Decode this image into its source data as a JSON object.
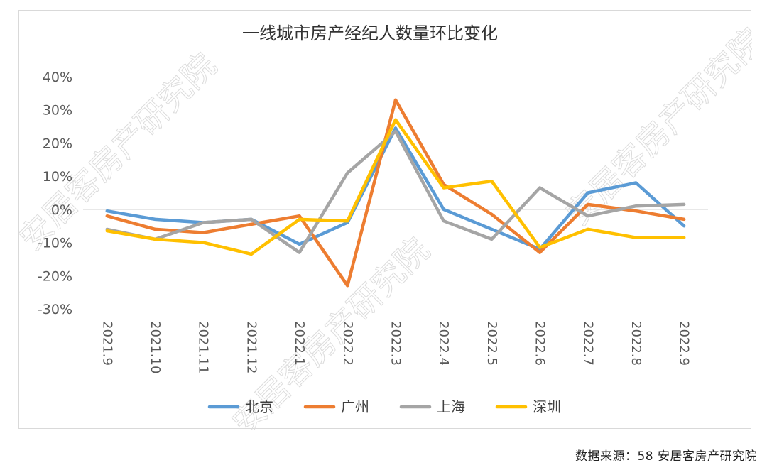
{
  "source_note": "数据来源：58 安居客房产研究院",
  "watermark": "安居客房产研究院",
  "chart_data": {
    "type": "line",
    "title": "一线城市房产经纪人数量环比变化",
    "xlabel": "",
    "ylabel": "",
    "categories": [
      "2021.9",
      "2021.10",
      "2021.11",
      "2021.12",
      "2022.1",
      "2022.2",
      "2022.3",
      "2022.4",
      "2022.5",
      "2022.6",
      "2022.7",
      "2022.8",
      "2022.9"
    ],
    "ylim": [
      -30,
      40
    ],
    "yticks": [
      40,
      30,
      20,
      10,
      0,
      -10,
      -20,
      -30
    ],
    "ytick_labels": [
      "40%",
      "30%",
      "20%",
      "10%",
      "0%",
      "-10%",
      "-20%",
      "-30%"
    ],
    "grid": false,
    "zero_line": true,
    "legend": "bottom",
    "series": [
      {
        "name": "北京",
        "color": "#5b9bd5",
        "values": [
          -0.5,
          -3,
          -4,
          -3,
          -10.5,
          -4,
          24.5,
          0,
          -6,
          -12,
          5,
          8,
          -5
        ]
      },
      {
        "name": "广州",
        "color": "#ed7d31",
        "values": [
          -2,
          -6,
          -7,
          -4.5,
          -2,
          -23,
          33,
          7.5,
          -1.5,
          -13,
          1.5,
          -0.5,
          -3
        ]
      },
      {
        "name": "上海",
        "color": "#a5a5a5",
        "values": [
          -6,
          -9,
          -4,
          -3,
          -13,
          11,
          23.5,
          -3.5,
          -9,
          6.5,
          -2,
          1,
          1.5
        ]
      },
      {
        "name": "深圳",
        "color": "#ffc000",
        "values": [
          -6.5,
          -9,
          -10,
          -13.5,
          -3,
          -3.5,
          27,
          6.5,
          8.5,
          -11.5,
          -6,
          -8.5,
          -8.5
        ]
      }
    ]
  }
}
